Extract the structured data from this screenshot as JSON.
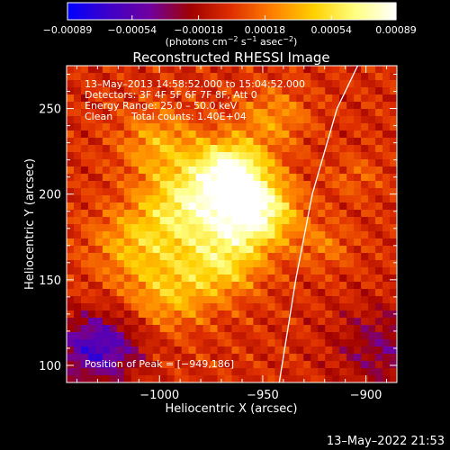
{
  "chart_data": {
    "type": "heatmap",
    "title": "Reconstructed RHESSI Image",
    "xlabel": "Heliocentric X (arcsec)",
    "ylabel": "Heliocentric Y (arcsec)",
    "xlim": [
      -1045,
      -885
    ],
    "ylim": [
      90,
      275
    ],
    "x_ticks": [
      -1000,
      -950,
      -900
    ],
    "x_tick_labels": [
      "−1000",
      "−950",
      "−900"
    ],
    "y_ticks": [
      100,
      150,
      200,
      250
    ],
    "y_tick_labels": [
      "100",
      "150",
      "200",
      "250"
    ],
    "colorbar": {
      "range": [
        -0.00089,
        0.00089
      ],
      "ticks": [
        -0.00089,
        -0.00054,
        -0.00018,
        0.00018,
        0.00054,
        0.00089
      ],
      "tick_labels": [
        "−0.00089",
        "−0.00054",
        "−0.00018",
        "0.00018",
        "0.00054",
        "0.00089"
      ],
      "label_main": "(photons cm",
      "label_exp1": "−2",
      "label_mid": " s",
      "label_exp2": "−1",
      "label_end": " asec",
      "label_exp3": "−2",
      "label_close": ")",
      "colors": [
        "#0000ff",
        "#3d00c8",
        "#7000a0",
        "#a00000",
        "#e03000",
        "#ff8000",
        "#ffd000",
        "#ffff80",
        "#ffffff"
      ]
    },
    "annotations": {
      "time_range": "13–May–2013 14:58:52.000 to 15:04:52.000",
      "detectors": "Detectors: 3F 4F 5F 6F 7F 8F, Att 0",
      "energy": "Energy Range: 25.0 – 50.0 keV",
      "method": "Clean",
      "counts": "Total counts: 1.40E+04",
      "peak": "Position of Peak = [−949,186]"
    },
    "peak": [
      -949,
      186
    ],
    "limb": [
      [
        -942,
        90
      ],
      [
        -934,
        150
      ],
      [
        -926,
        200
      ],
      [
        -914,
        250
      ],
      [
        -904,
        275
      ]
    ],
    "sources": [
      {
        "x": -955,
        "y": 190,
        "amp": 0.00089,
        "sigma": 14
      },
      {
        "x": -965,
        "y": 215,
        "amp": 0.00075,
        "sigma": 12
      },
      {
        "x": -985,
        "y": 195,
        "amp": 0.0006,
        "sigma": 16
      },
      {
        "x": -970,
        "y": 160,
        "amp": 0.0005,
        "sigma": 14
      },
      {
        "x": -1000,
        "y": 230,
        "amp": 0.00035,
        "sigma": 14
      },
      {
        "x": -1010,
        "y": 170,
        "amp": 0.0004,
        "sigma": 16
      },
      {
        "x": -945,
        "y": 245,
        "amp": 0.0003,
        "sigma": 12
      },
      {
        "x": -995,
        "y": 140,
        "amp": 0.00035,
        "sigma": 14
      },
      {
        "x": -920,
        "y": 170,
        "amp": 0.0002,
        "sigma": 10
      },
      {
        "x": -905,
        "y": 210,
        "amp": 0.00015,
        "sigma": 9
      },
      {
        "x": -1030,
        "y": 110,
        "amp": -0.0006,
        "sigma": 14
      },
      {
        "x": -890,
        "y": 110,
        "amp": -0.0003,
        "sigma": 18
      }
    ]
  },
  "footer": {
    "timestamp": "13–May–2022 21:53"
  }
}
